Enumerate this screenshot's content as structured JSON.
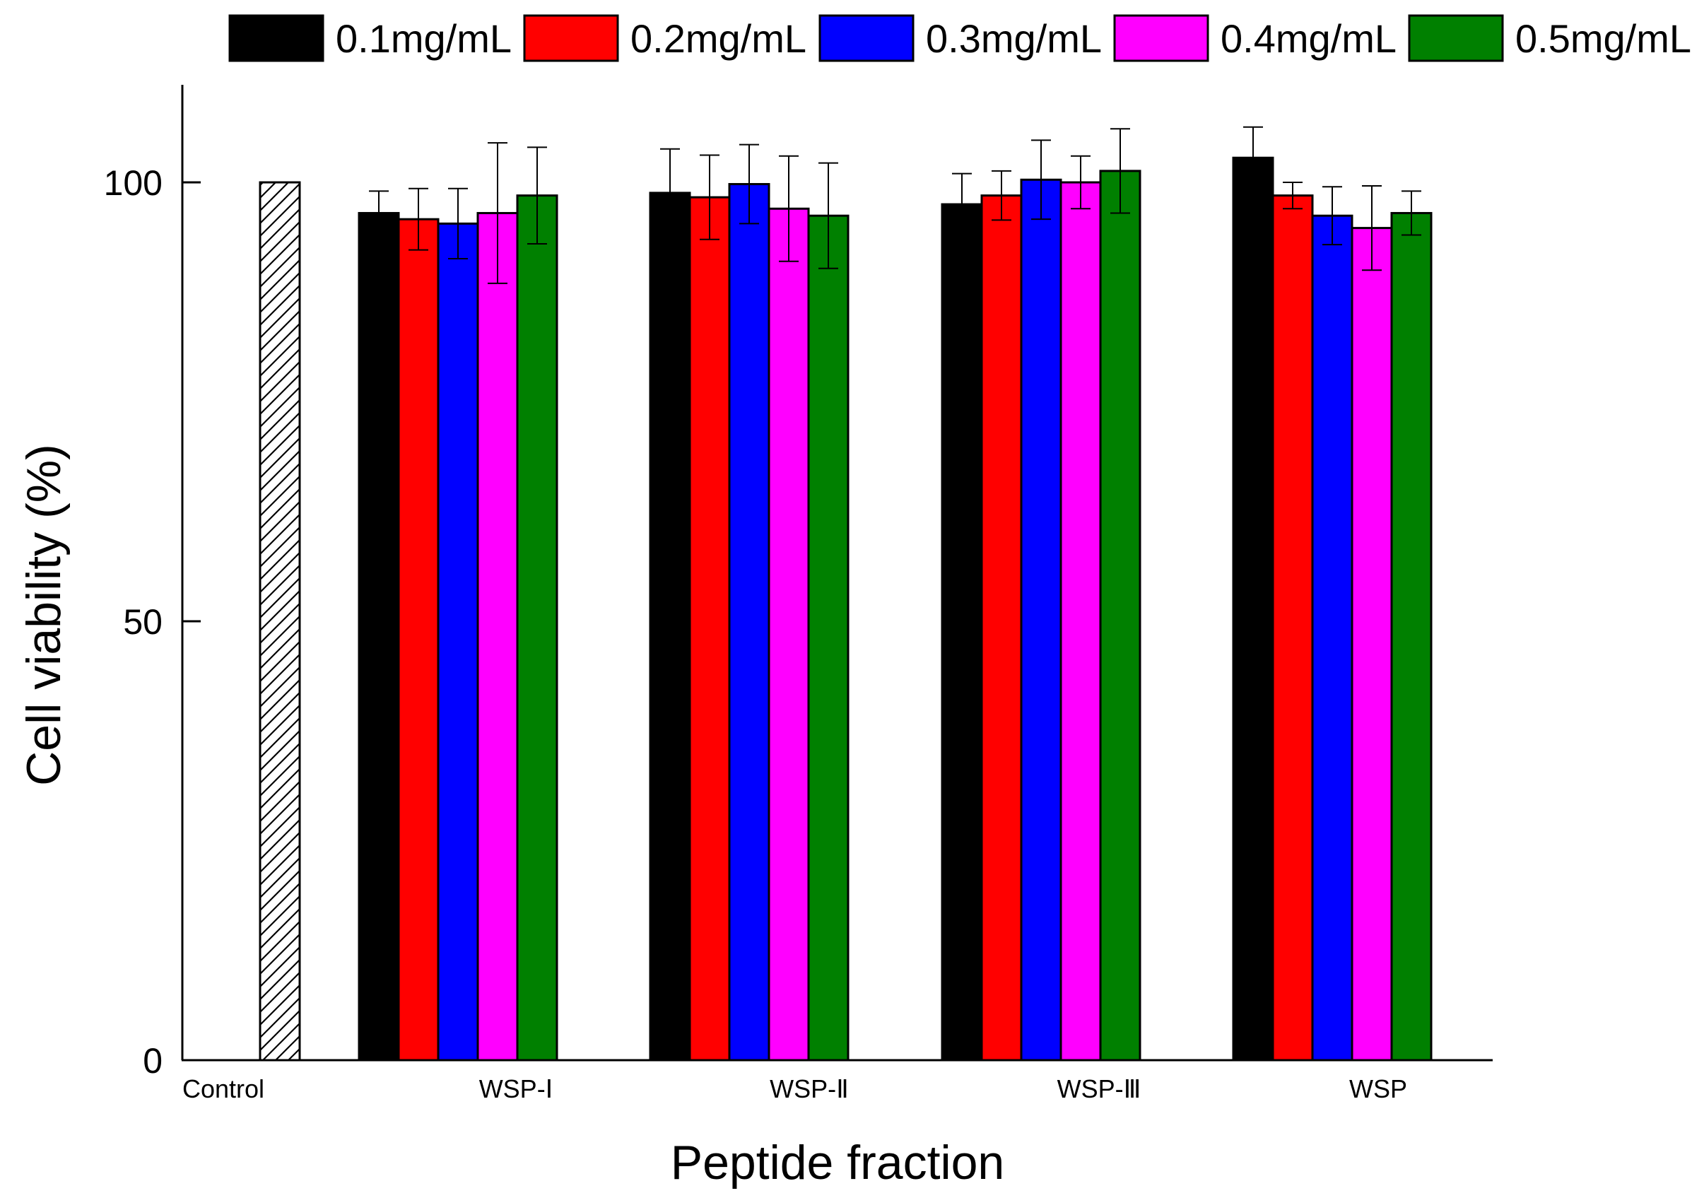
{
  "chart_data": {
    "type": "bar",
    "title": "",
    "xlabel": "Peptide fraction",
    "ylabel": "Cell viability (%)",
    "ylim": [
      0,
      111
    ],
    "yticks": [
      0,
      50,
      100
    ],
    "grid": false,
    "legend_position": "top",
    "control": {
      "label": "Control",
      "value": 100,
      "pattern": "hatched"
    },
    "categories": [
      "WSP-Ⅰ",
      "WSP-Ⅱ",
      "WSP-Ⅲ",
      "WSP"
    ],
    "series": [
      {
        "name": "0.1mg/mL",
        "color": "#000000",
        "values": [
          96.5,
          98.8,
          97.5,
          102.8
        ],
        "errors": [
          2.5,
          5.0,
          3.5,
          3.5
        ]
      },
      {
        "name": "0.2mg/mL",
        "color": "#ff0000",
        "values": [
          95.8,
          98.3,
          98.5,
          98.5
        ],
        "errors": [
          3.5,
          4.8,
          2.8,
          1.5
        ]
      },
      {
        "name": "0.3mg/mL",
        "color": "#0000ff",
        "values": [
          95.3,
          99.8,
          100.3,
          96.2
        ],
        "errors": [
          4.0,
          4.5,
          4.5,
          3.3
        ]
      },
      {
        "name": "0.4mg/mL",
        "color": "#ff00ff",
        "values": [
          96.5,
          97.0,
          100.0,
          94.8
        ],
        "errors": [
          8.0,
          6.0,
          3.0,
          4.8
        ]
      },
      {
        "name": "0.5mg/mL",
        "color": "#008000",
        "values": [
          98.5,
          96.2,
          101.3,
          96.5
        ],
        "errors": [
          5.5,
          6.0,
          4.8,
          2.5
        ]
      }
    ]
  }
}
